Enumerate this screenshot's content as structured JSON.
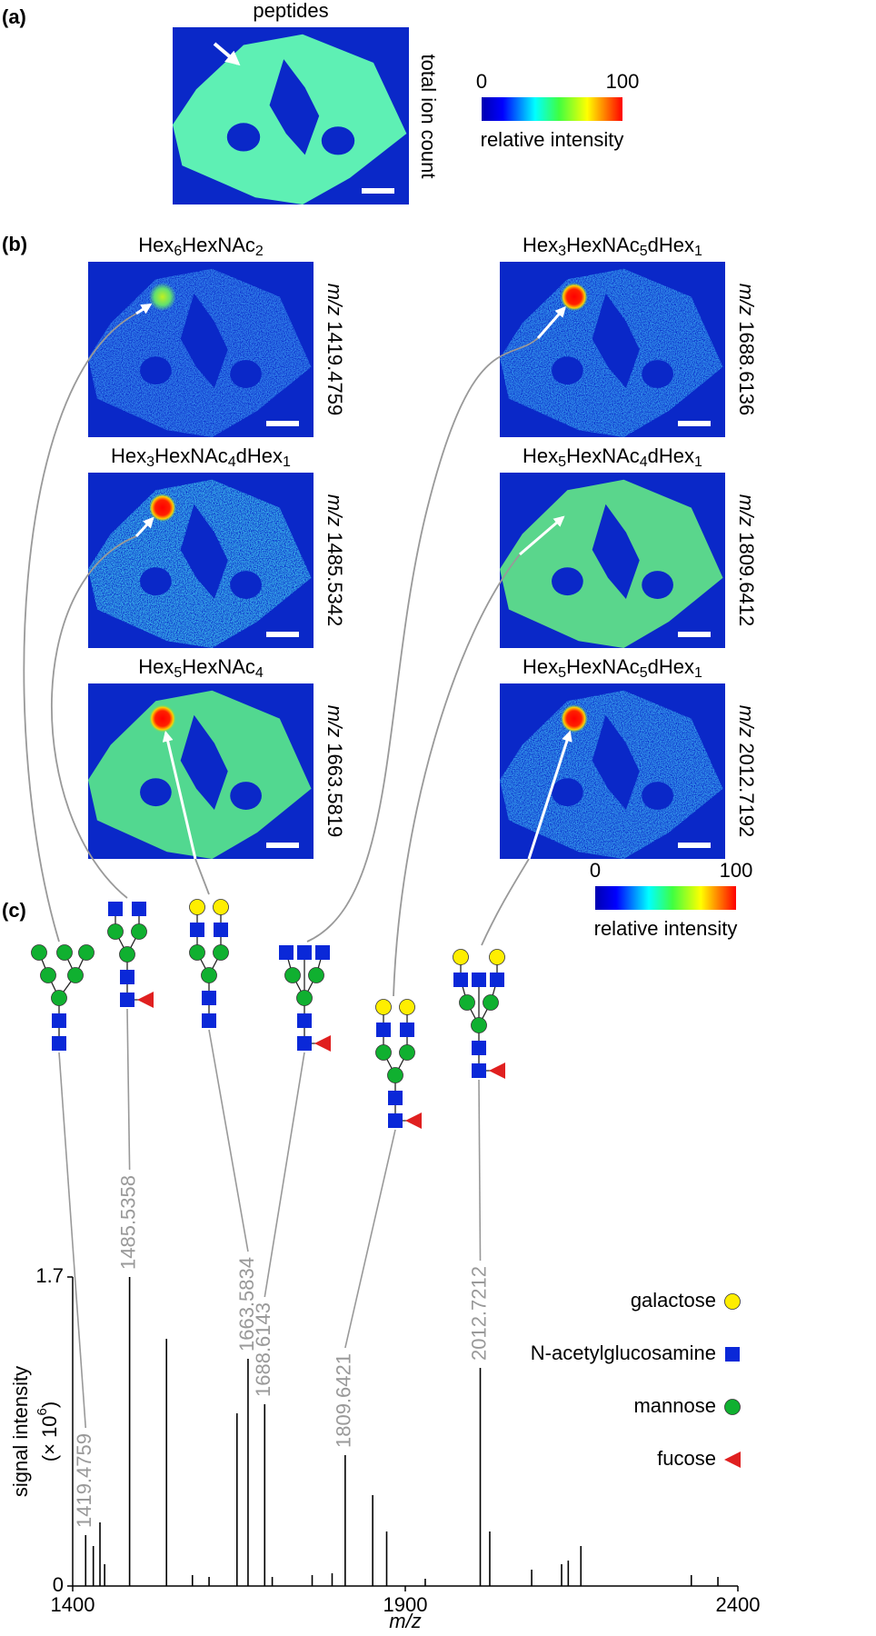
{
  "panel_a": {
    "label": "(a)",
    "title": "peptides",
    "side_label": "total ion count",
    "colorbar": {
      "min": 0,
      "max": 100,
      "label": "relative intensity"
    }
  },
  "panel_b": {
    "label": "(b)",
    "mz_prefix": "m/z",
    "images": [
      {
        "title": [
          "Hex",
          "6",
          "HexNAc",
          "2"
        ],
        "mz": 1419.4759
      },
      {
        "title": [
          "Hex",
          "3",
          "HexNAc",
          "4",
          "dHex",
          "1"
        ],
        "mz": 1485.5342
      },
      {
        "title": [
          "Hex",
          "5",
          "HexNAc",
          "4"
        ],
        "mz": 1663.5819
      },
      {
        "title": [
          "Hex",
          "3",
          "HexNAc",
          "5",
          "dHex",
          "1"
        ],
        "mz": 1688.6136
      },
      {
        "title": [
          "Hex",
          "5",
          "HexNAc",
          "4",
          "dHex",
          "1"
        ],
        "mz": 1809.6412
      },
      {
        "title": [
          "Hex",
          "5",
          "HexNAc",
          "5",
          "dHex",
          "1"
        ],
        "mz": 2012.7192
      }
    ],
    "colorbar": {
      "min": 0,
      "max": 100,
      "label": "relative intensity"
    }
  },
  "panel_c": {
    "label": "(c)"
  },
  "chart_data": {
    "type": "stem",
    "color": "#000000",
    "annotation_color": "#999999",
    "x": [
      1419.4759,
      1431,
      1441,
      1448,
      1485.5358,
      1541,
      1580,
      1605,
      1647,
      1663.5834,
      1688.6143,
      1700,
      1760,
      1790,
      1809.6421,
      1851,
      1872,
      1930,
      2012.7212,
      2027,
      2090,
      2135,
      2145,
      2164,
      2330,
      2370
    ],
    "values": [
      0.28,
      0.22,
      0.35,
      0.12,
      1.7,
      1.36,
      0.06,
      0.05,
      0.95,
      1.25,
      1.0,
      0.05,
      0.06,
      0.07,
      0.72,
      0.5,
      0.3,
      0.04,
      1.2,
      0.3,
      0.09,
      0.12,
      0.14,
      0.22,
      0.06,
      0.05
    ],
    "annotations": [
      1419.4759,
      1485.5358,
      1663.5834,
      1688.6143,
      1809.6421,
      2012.7212
    ],
    "xlim": [
      1400,
      2400
    ],
    "ylim": [
      0,
      1.7
    ],
    "xticks": [
      1400,
      1900,
      2400
    ],
    "yticks": [
      0,
      1.7
    ],
    "xlabel": "m/z",
    "ylabel": "signal intensity",
    "yunit": [
      "(× 10",
      "6",
      ")"
    ],
    "legend": [
      {
        "name": "galactose",
        "color": "#ffee00",
        "symbol": "circle"
      },
      {
        "name": "N-acetylglucosamine",
        "color": "#0a28d8",
        "symbol": "square"
      },
      {
        "name": "mannose",
        "color": "#10b030",
        "symbol": "circle"
      },
      {
        "name": "fucose",
        "color": "#e02020",
        "symbol": "triangle"
      }
    ]
  }
}
